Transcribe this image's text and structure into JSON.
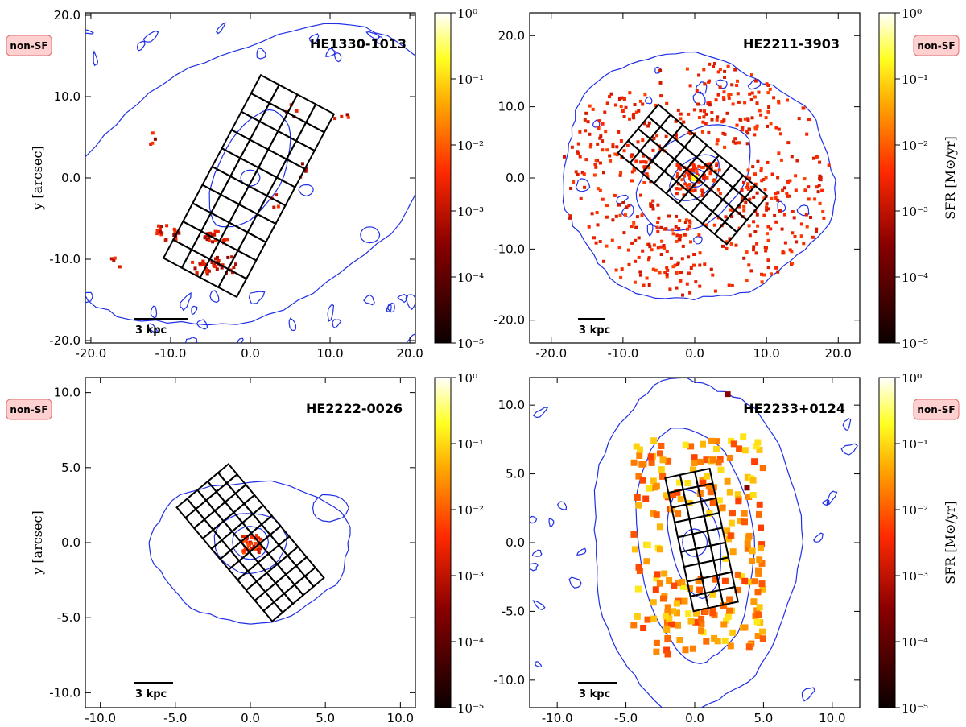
{
  "figure": {
    "colorbar_label": "SFR [M⊙/yr]",
    "colorbar_ticks": [
      "10⁰",
      "10⁻¹",
      "10⁻²",
      "10⁻³",
      "10⁻⁴",
      "10⁻⁵"
    ],
    "badge_label": "non-SF",
    "scale_bar_label": "3 kpc",
    "colors": {
      "contour": "#1f2fe6",
      "grid": "#000000",
      "badge_fill": "#ffd0d0",
      "badge_stroke": "#e07070"
    }
  },
  "chart_data": [
    {
      "type": "heatmap",
      "title": "HE1330-1013",
      "xlabel": "",
      "ylabel": "y [arcsec]",
      "xlim": [
        -20.7,
        20.7
      ],
      "ylim": [
        -20.3,
        20.3
      ],
      "xticks": [
        -20.0,
        -10.0,
        0.0,
        10.0,
        20.0
      ],
      "xtick_labels": [
        "-20.0",
        "-10.0",
        "0.0",
        "10.0",
        "20.0"
      ],
      "yticks": [
        -20.0,
        -10.0,
        0.0,
        10.0,
        20.0
      ],
      "ytick_labels": [
        "-20.0",
        "-10.0",
        "0.0",
        "10.0",
        "20.0"
      ],
      "colorbar": {
        "label": "",
        "scale": "log",
        "range": [
          1e-05,
          1
        ]
      },
      "badge_side": "left",
      "scale_bar_kpc": 3,
      "grid": {
        "center": [
          -0.2,
          -1.0
        ],
        "rows": 10,
        "cols": 4,
        "cell": 2.6,
        "angle_deg": 62
      },
      "sf_intensity": "sparse"
    },
    {
      "type": "heatmap",
      "title": "HE2211-3903",
      "xlabel": "",
      "ylabel": "",
      "xlim": [
        -23.0,
        23.0
      ],
      "ylim": [
        -23.2,
        23.2
      ],
      "xticks": [
        -20.0,
        -10.0,
        0.0,
        10.0,
        20.0
      ],
      "xtick_labels": [
        "-20.0",
        "-10.0",
        "0.0",
        "10.0",
        "20.0"
      ],
      "yticks": [
        -20.0,
        -10.0,
        0.0,
        10.0,
        20.0
      ],
      "ytick_labels": [
        "-20.0",
        "-10.0",
        "0.0",
        "10.0",
        "20.0"
      ],
      "colorbar": {
        "label": "SFR [M⊙/yr]",
        "scale": "log",
        "range": [
          1e-05,
          1
        ]
      },
      "badge_side": "right",
      "scale_bar_kpc": 3,
      "grid": {
        "center": [
          -0.3,
          0.5
        ],
        "rows": 9,
        "cols": 4,
        "cell": 2.2,
        "angle_deg": -40
      },
      "sf_intensity": "ring"
    },
    {
      "type": "heatmap",
      "title": "HE2222-0026",
      "xlabel": "",
      "ylabel": "y [arcsec]",
      "xlim": [
        -11.0,
        11.0
      ],
      "ylim": [
        -11.0,
        11.0
      ],
      "xticks": [
        -10.0,
        -5.0,
        0.0,
        5.0,
        10.0
      ],
      "xtick_labels": [
        "-10.0",
        "-5.0",
        "0.0",
        "5.0",
        "10.0"
      ],
      "yticks": [
        -10.0,
        -5.0,
        0.0,
        5.0,
        10.0
      ],
      "ytick_labels": [
        "-10.0",
        "-5.0",
        "0.0",
        "5.0",
        "10.0"
      ],
      "colorbar": {
        "label": "",
        "scale": "log",
        "range": [
          1e-05,
          1
        ]
      },
      "badge_side": "left",
      "scale_bar_kpc": 3,
      "grid": {
        "center": [
          0.0,
          0.0
        ],
        "rows": 5,
        "cols": 11,
        "cell": 0.9,
        "angle_deg": 40
      },
      "sf_intensity": "nuclear"
    },
    {
      "type": "heatmap",
      "title": "HE2233+0124",
      "xlabel": "",
      "ylabel": "",
      "xlim": [
        -12.0,
        12.0
      ],
      "ylim": [
        -12.0,
        12.0
      ],
      "xticks": [
        -10.0,
        -5.0,
        0.0,
        5.0,
        10.0
      ],
      "xtick_labels": [
        "-10.0",
        "-5.0",
        "0.0",
        "5.0",
        "10.0"
      ],
      "yticks": [
        -10.0,
        -5.0,
        0.0,
        5.0,
        10.0
      ],
      "ytick_labels": [
        "-10.0",
        "-5.0",
        "0.0",
        "5.0",
        "10.0"
      ],
      "colorbar": {
        "label": "SFR [M⊙/yr]",
        "scale": "log",
        "range": [
          1e-05,
          1
        ]
      },
      "badge_side": "right",
      "scale_bar_kpc": 3,
      "grid": {
        "center": [
          0.5,
          0.2
        ],
        "rows": 9,
        "cols": 3,
        "cell": 1.1,
        "angle_deg": -78
      },
      "sf_intensity": "extended"
    }
  ]
}
